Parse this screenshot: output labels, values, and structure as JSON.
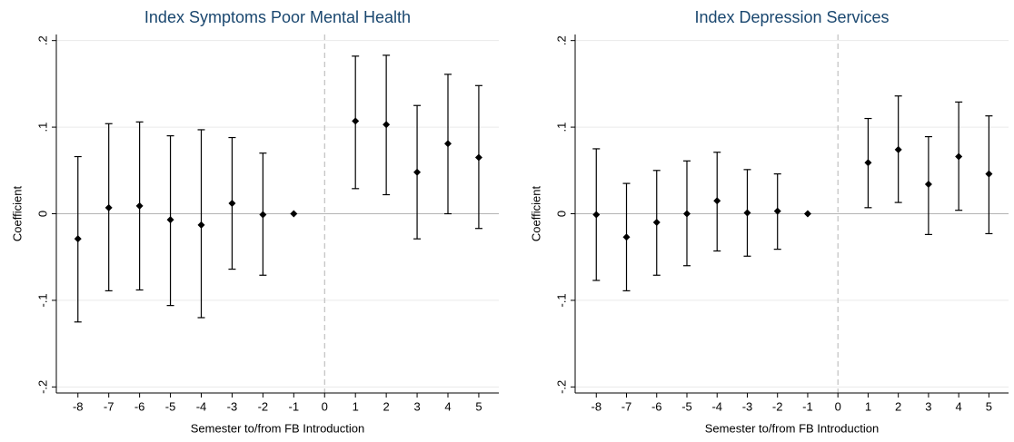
{
  "chart_data": [
    {
      "type": "coefplot",
      "title": "Index Symptoms Poor Mental Health",
      "x_label": "Semester to/from FB Introduction",
      "y_label": "Coefficient",
      "x": [
        -8,
        -7,
        -6,
        -5,
        -4,
        -3,
        -2,
        -1,
        1,
        2,
        3,
        4,
        5
      ],
      "values": [
        -0.029,
        0.007,
        0.009,
        -0.007,
        -0.013,
        0.012,
        -0.001,
        0,
        0.107,
        0.103,
        0.048,
        0.081,
        0.065
      ],
      "ci_low": [
        -0.125,
        -0.089,
        -0.088,
        -0.106,
        -0.12,
        -0.064,
        -0.071,
        null,
        0.029,
        0.022,
        -0.029,
        0.0,
        -0.017
      ],
      "ci_high": [
        0.066,
        0.104,
        0.106,
        0.09,
        0.097,
        0.088,
        0.07,
        null,
        0.182,
        0.183,
        0.125,
        0.161,
        0.148
      ],
      "color": "#000000",
      "xlim": [
        -8.7,
        5.65
      ],
      "xticks": [
        -8,
        -7,
        -6,
        -5,
        -4,
        -3,
        -2,
        -1,
        0,
        1,
        2,
        3,
        4,
        5
      ],
      "ylim": [
        -0.207,
        0.207
      ],
      "yticks": [
        {
          "value": -0.2,
          "label": "-.2"
        },
        {
          "value": -0.1,
          "label": "-.1"
        },
        0,
        {
          "value": 0.1,
          "label": ".1"
        },
        {
          "value": 0.2,
          "label": ".2"
        }
      ],
      "reference_x": 0,
      "reference_y": 0,
      "grid": true
    },
    {
      "type": "coefplot",
      "title": "Index Depression Services",
      "x_label": "Semester to/from FB Introduction",
      "y_label": "Coefficient",
      "x": [
        -8,
        -7,
        -6,
        -5,
        -4,
        -3,
        -2,
        -1,
        1,
        2,
        3,
        4,
        5
      ],
      "values": [
        -0.001,
        -0.027,
        -0.01,
        0.0,
        0.015,
        0.001,
        0.003,
        0,
        0.059,
        0.074,
        0.034,
        0.066,
        0.046
      ],
      "ci_low": [
        -0.077,
        -0.089,
        -0.071,
        -0.06,
        -0.043,
        -0.049,
        -0.041,
        null,
        0.007,
        0.013,
        -0.024,
        0.004,
        -0.023
      ],
      "ci_high": [
        0.075,
        0.035,
        0.05,
        0.061,
        0.071,
        0.051,
        0.046,
        null,
        0.11,
        0.136,
        0.089,
        0.129,
        0.113
      ],
      "color": "#000000",
      "xlim": [
        -8.7,
        5.65
      ],
      "xticks": [
        -8,
        -7,
        -6,
        -5,
        -4,
        -3,
        -2,
        -1,
        0,
        1,
        2,
        3,
        4,
        5
      ],
      "ylim": [
        -0.207,
        0.207
      ],
      "yticks": [
        {
          "value": -0.2,
          "label": "-.2"
        },
        {
          "value": -0.1,
          "label": "-.1"
        },
        0,
        {
          "value": 0.1,
          "label": ".1"
        },
        {
          "value": 0.2,
          "label": ".2"
        }
      ],
      "reference_x": 0,
      "reference_y": 0,
      "grid": true
    }
  ]
}
